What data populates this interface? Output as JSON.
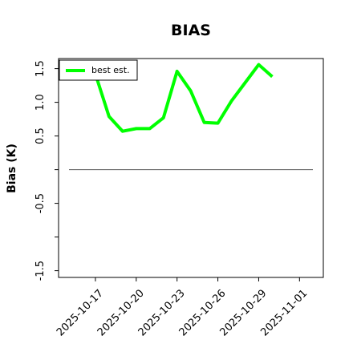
{
  "chart_data": {
    "type": "line",
    "title": "BIAS",
    "y_label": "Bias (K)",
    "x": [
      "2025-10-17",
      "2025-10-18",
      "2025-10-19",
      "2025-10-20",
      "2025-10-21",
      "2025-10-22",
      "2025-10-23",
      "2025-10-24",
      "2025-10-25",
      "2025-10-26",
      "2025-10-27",
      "2025-10-28",
      "2025-10-29",
      "2025-10-30"
    ],
    "series": [
      {
        "name": "best est.",
        "color": "#00ff00",
        "values": [
          1.42,
          0.79,
          0.57,
          0.61,
          0.61,
          0.77,
          1.46,
          1.17,
          0.7,
          0.69,
          1.02,
          1.29,
          1.56,
          1.38
        ]
      }
    ],
    "xlim": [
      "2025-10-14T07:00",
      "2025-11-02T18:00"
    ],
    "xticks": [
      "2025-10-17",
      "2025-10-20",
      "2025-10-23",
      "2025-10-26",
      "2025-10-29",
      "2025-11-01"
    ],
    "ylim": [
      -1.6,
      1.65
    ],
    "yticks": [
      {
        "value": -1.5,
        "label": "-1.5"
      },
      {
        "value": -1.0,
        "label": null
      },
      {
        "value": -0.5,
        "label": "-0.5"
      },
      {
        "value": 0,
        "label": null
      },
      {
        "value": 0.5,
        "label": "0.5"
      },
      {
        "value": 1.0,
        "label": "1.0"
      },
      {
        "value": 1.5,
        "label": "1.5"
      }
    ],
    "reference_line": 0,
    "legend": "upper left",
    "grid": false
  }
}
